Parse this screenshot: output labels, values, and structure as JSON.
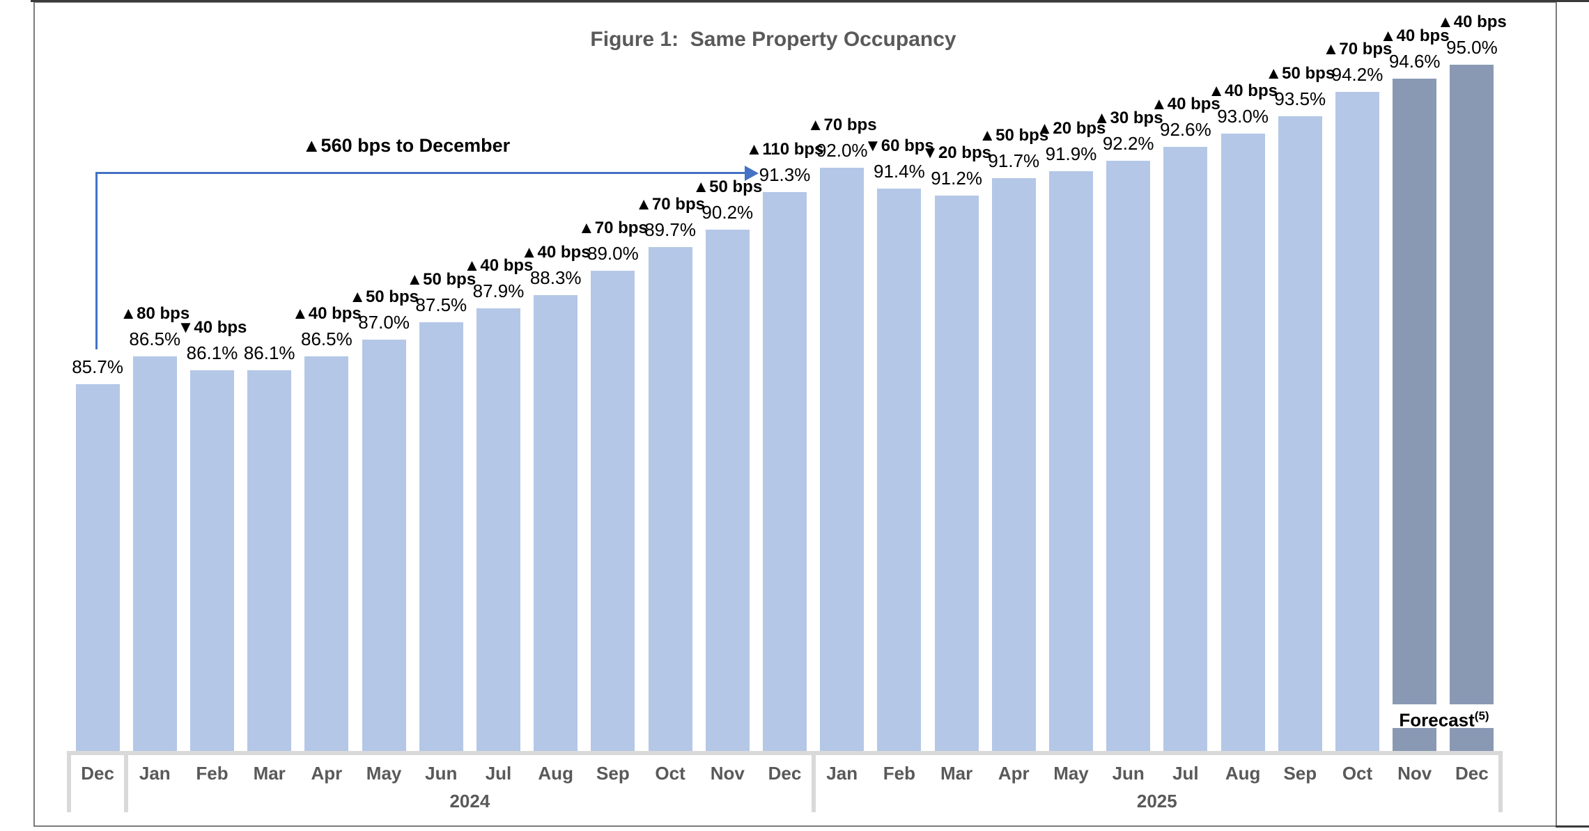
{
  "chart_data": {
    "type": "bar",
    "title": "Figure 1:  Same Property Occupancy",
    "xlabel": "",
    "ylabel": "",
    "ylim": [
      75,
      96
    ],
    "y_axis_visible": false,
    "grid": false,
    "legend": "none",
    "value_format": "percent",
    "annotation": {
      "text": "▲560 bps to December"
    },
    "forecast_note": {
      "text": "Forecast",
      "superscript": "(5)"
    },
    "groups": [
      {
        "year_label": "",
        "start_index": 0,
        "count": 1
      },
      {
        "year_label": "2024",
        "start_index": 1,
        "count": 12
      },
      {
        "year_label": "2025",
        "start_index": 13,
        "count": 12
      }
    ],
    "categories": [
      "Dec",
      "Jan",
      "Feb",
      "Mar",
      "Apr",
      "May",
      "Jun",
      "Jul",
      "Aug",
      "Sep",
      "Oct",
      "Nov",
      "Dec",
      "Jan",
      "Feb",
      "Mar",
      "Apr",
      "May",
      "Jun",
      "Jul",
      "Aug",
      "Sep",
      "Oct",
      "Nov",
      "Dec"
    ],
    "points": [
      {
        "month": "Dec",
        "value": 85.7,
        "value_label": "85.7%",
        "change_label": null,
        "forecast": false
      },
      {
        "month": "Jan",
        "value": 86.5,
        "value_label": "86.5%",
        "change_label": "▲80 bps",
        "forecast": false
      },
      {
        "month": "Feb",
        "value": 86.1,
        "value_label": "86.1%",
        "change_label": "▼40 bps",
        "forecast": false
      },
      {
        "month": "Mar",
        "value": 86.1,
        "value_label": "86.1%",
        "change_label": null,
        "forecast": false
      },
      {
        "month": "Apr",
        "value": 86.5,
        "value_label": "86.5%",
        "change_label": "▲40 bps",
        "forecast": false
      },
      {
        "month": "May",
        "value": 87.0,
        "value_label": "87.0%",
        "change_label": "▲50 bps",
        "forecast": false
      },
      {
        "month": "Jun",
        "value": 87.5,
        "value_label": "87.5%",
        "change_label": "▲50 bps",
        "forecast": false
      },
      {
        "month": "Jul",
        "value": 87.9,
        "value_label": "87.9%",
        "change_label": "▲40 bps",
        "forecast": false
      },
      {
        "month": "Aug",
        "value": 88.3,
        "value_label": "88.3%",
        "change_label": "▲40 bps",
        "forecast": false
      },
      {
        "month": "Sep",
        "value": 89.0,
        "value_label": "89.0%",
        "change_label": "▲70 bps",
        "forecast": false
      },
      {
        "month": "Oct",
        "value": 89.7,
        "value_label": "89.7%",
        "change_label": "▲70 bps",
        "forecast": false
      },
      {
        "month": "Nov",
        "value": 90.2,
        "value_label": "90.2%",
        "change_label": "▲50 bps",
        "forecast": false
      },
      {
        "month": "Dec",
        "value": 91.3,
        "value_label": "91.3%",
        "change_label": "▲110 bps",
        "forecast": false
      },
      {
        "month": "Jan",
        "value": 92.0,
        "value_label": "92.0%",
        "change_label": "▲70 bps",
        "forecast": false
      },
      {
        "month": "Feb",
        "value": 91.4,
        "value_label": "91.4%",
        "change_label": "▼60 bps",
        "forecast": false
      },
      {
        "month": "Mar",
        "value": 91.2,
        "value_label": "91.2%",
        "change_label": "▼20 bps",
        "forecast": false
      },
      {
        "month": "Apr",
        "value": 91.7,
        "value_label": "91.7%",
        "change_label": "▲50 bps",
        "forecast": false
      },
      {
        "month": "May",
        "value": 91.9,
        "value_label": "91.9%",
        "change_label": "▲20 bps",
        "forecast": false
      },
      {
        "month": "Jun",
        "value": 92.2,
        "value_label": "92.2%",
        "change_label": "▲30 bps",
        "forecast": false
      },
      {
        "month": "Jul",
        "value": 92.6,
        "value_label": "92.6%",
        "change_label": "▲40 bps",
        "forecast": false
      },
      {
        "month": "Aug",
        "value": 93.0,
        "value_label": "93.0%",
        "change_label": "▲40 bps",
        "forecast": false
      },
      {
        "month": "Sep",
        "value": 93.5,
        "value_label": "93.5%",
        "change_label": "▲50 bps",
        "forecast": false
      },
      {
        "month": "Oct",
        "value": 94.2,
        "value_label": "94.2%",
        "change_label": "▲70 bps",
        "forecast": false
      },
      {
        "month": "Nov",
        "value": 94.6,
        "value_label": "94.6%",
        "change_label": "▲40 bps",
        "forecast": true
      },
      {
        "month": "Dec",
        "value": 95.0,
        "value_label": "95.0%",
        "change_label": "▲40 bps",
        "forecast": true
      }
    ]
  },
  "colors": {
    "bar": "#b4c7e7",
    "bar_forecast": "#8999b4",
    "arrow": "#4472c4",
    "title_text": "#595959",
    "axis_text": "#595959",
    "axis_line": "#d9d9d9",
    "label_text": "#000000"
  }
}
